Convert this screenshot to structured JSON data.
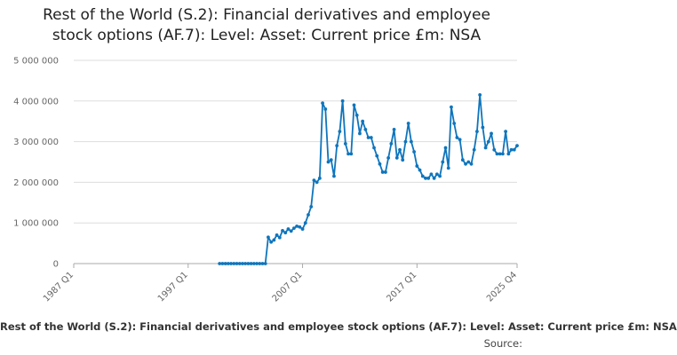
{
  "chart_data": {
    "type": "line",
    "title_lines": [
      "Rest of the World (S.2): Financial derivatives and employee",
      "stock options (AF.7): Level: Asset: Current price £m: NSA"
    ],
    "legend": "Rest of the World (S.2): Financial derivatives and employee stock options (AF.7): Level: Asset: Current price £m: NSA",
    "source_label": "Source:",
    "ylim": [
      0,
      5000000
    ],
    "y_ticks": [
      0,
      1000000,
      2000000,
      3000000,
      4000000,
      5000000
    ],
    "y_tick_labels": [
      "0",
      "1 000 000",
      "2 000 000",
      "3 000 000",
      "4 000 000",
      "5 000 000"
    ],
    "x_ticks": [
      "1987 Q1",
      "1997 Q1",
      "2007 Q1",
      "2017 Q1",
      "2025 Q4"
    ],
    "x_range": [
      "1987 Q1",
      "2025 Q4"
    ],
    "grid": true,
    "colors": {
      "line": "#0f75bc",
      "grid": "#dddddd",
      "axis": "#aaaaaa"
    },
    "series": [
      {
        "values": [
          [
            "1999 Q4",
            0
          ],
          [
            "2000 Q1",
            0
          ],
          [
            "2000 Q2",
            0
          ],
          [
            "2000 Q3",
            0
          ],
          [
            "2000 Q4",
            0
          ],
          [
            "2001 Q1",
            0
          ],
          [
            "2001 Q2",
            0
          ],
          [
            "2001 Q3",
            0
          ],
          [
            "2001 Q4",
            0
          ],
          [
            "2002 Q1",
            0
          ],
          [
            "2002 Q2",
            0
          ],
          [
            "2002 Q3",
            0
          ],
          [
            "2002 Q4",
            0
          ],
          [
            "2003 Q1",
            0
          ],
          [
            "2003 Q2",
            0
          ],
          [
            "2003 Q3",
            0
          ],
          [
            "2003 Q4",
            0
          ],
          [
            "2004 Q1",
            650000
          ],
          [
            "2004 Q2",
            530000
          ],
          [
            "2004 Q3",
            580000
          ],
          [
            "2004 Q4",
            700000
          ],
          [
            "2005 Q1",
            640000
          ],
          [
            "2005 Q2",
            810000
          ],
          [
            "2005 Q3",
            760000
          ],
          [
            "2005 Q4",
            850000
          ],
          [
            "2006 Q1",
            800000
          ],
          [
            "2006 Q2",
            870000
          ],
          [
            "2006 Q3",
            920000
          ],
          [
            "2006 Q4",
            900000
          ],
          [
            "2007 Q1",
            850000
          ],
          [
            "2007 Q2",
            1000000
          ],
          [
            "2007 Q3",
            1200000
          ],
          [
            "2007 Q4",
            1400000
          ],
          [
            "2008 Q1",
            2050000
          ],
          [
            "2008 Q2",
            2000000
          ],
          [
            "2008 Q3",
            2100000
          ],
          [
            "2008 Q4",
            3950000
          ],
          [
            "2009 Q1",
            3800000
          ],
          [
            "2009 Q2",
            2500000
          ],
          [
            "2009 Q3",
            2550000
          ],
          [
            "2009 Q4",
            2150000
          ],
          [
            "2010 Q1",
            2900000
          ],
          [
            "2010 Q2",
            3250000
          ],
          [
            "2010 Q3",
            4000000
          ],
          [
            "2010 Q4",
            2950000
          ],
          [
            "2011 Q1",
            2700000
          ],
          [
            "2011 Q2",
            2700000
          ],
          [
            "2011 Q3",
            3900000
          ],
          [
            "2011 Q4",
            3650000
          ],
          [
            "2012 Q1",
            3200000
          ],
          [
            "2012 Q2",
            3500000
          ],
          [
            "2012 Q3",
            3300000
          ],
          [
            "2012 Q4",
            3100000
          ],
          [
            "2013 Q1",
            3100000
          ],
          [
            "2013 Q2",
            2850000
          ],
          [
            "2013 Q3",
            2650000
          ],
          [
            "2013 Q4",
            2450000
          ],
          [
            "2014 Q1",
            2250000
          ],
          [
            "2014 Q2",
            2250000
          ],
          [
            "2014 Q3",
            2600000
          ],
          [
            "2014 Q4",
            2950000
          ],
          [
            "2015 Q1",
            3300000
          ],
          [
            "2015 Q2",
            2600000
          ],
          [
            "2015 Q3",
            2800000
          ],
          [
            "2015 Q4",
            2550000
          ],
          [
            "2016 Q1",
            3000000
          ],
          [
            "2016 Q2",
            3450000
          ],
          [
            "2016 Q3",
            3000000
          ],
          [
            "2016 Q4",
            2750000
          ],
          [
            "2017 Q1",
            2400000
          ],
          [
            "2017 Q2",
            2300000
          ],
          [
            "2017 Q3",
            2150000
          ],
          [
            "2017 Q4",
            2100000
          ],
          [
            "2018 Q1",
            2100000
          ],
          [
            "2018 Q2",
            2200000
          ],
          [
            "2018 Q3",
            2100000
          ],
          [
            "2018 Q4",
            2200000
          ],
          [
            "2019 Q1",
            2150000
          ],
          [
            "2019 Q2",
            2500000
          ],
          [
            "2019 Q3",
            2850000
          ],
          [
            "2019 Q4",
            2350000
          ],
          [
            "2020 Q1",
            3850000
          ],
          [
            "2020 Q2",
            3450000
          ],
          [
            "2020 Q3",
            3100000
          ],
          [
            "2020 Q4",
            3050000
          ],
          [
            "2021 Q1",
            2550000
          ],
          [
            "2021 Q2",
            2450000
          ],
          [
            "2021 Q3",
            2500000
          ],
          [
            "2021 Q4",
            2450000
          ],
          [
            "2022 Q1",
            2800000
          ],
          [
            "2022 Q2",
            3250000
          ],
          [
            "2022 Q3",
            4150000
          ],
          [
            "2022 Q4",
            3350000
          ],
          [
            "2023 Q1",
            2850000
          ],
          [
            "2023 Q2",
            3000000
          ],
          [
            "2023 Q3",
            3200000
          ],
          [
            "2023 Q4",
            2800000
          ],
          [
            "2024 Q1",
            2700000
          ],
          [
            "2024 Q2",
            2700000
          ],
          [
            "2024 Q3",
            2700000
          ],
          [
            "2024 Q4",
            3250000
          ],
          [
            "2025 Q1",
            2700000
          ],
          [
            "2025 Q2",
            2800000
          ],
          [
            "2025 Q3",
            2800000
          ],
          [
            "2025 Q4",
            2900000
          ]
        ]
      }
    ]
  }
}
